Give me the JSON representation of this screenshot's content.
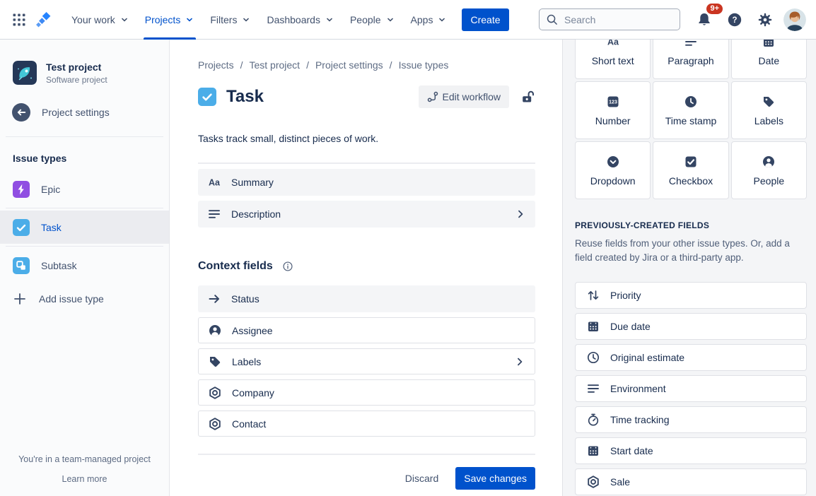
{
  "colors": {
    "accent": "#0052CC",
    "badge": "#CA3521",
    "task_blue": "#4BADE8",
    "epic_purple": "#904EE2",
    "subtask_blue": "#4BADE8",
    "panel_bg": "#F4F5F7",
    "selected_bg": "#EBECF0"
  },
  "topnav": {
    "items": [
      {
        "label": "Your work"
      },
      {
        "label": "Projects",
        "active": true
      },
      {
        "label": "Filters"
      },
      {
        "label": "Dashboards"
      },
      {
        "label": "People"
      },
      {
        "label": "Apps"
      }
    ],
    "create_label": "Create",
    "search_placeholder": "Search",
    "notification_count": "9+"
  },
  "sidebar": {
    "project_name": "Test project",
    "project_type": "Software project",
    "back_label": "Project settings",
    "section_title": "Issue types",
    "issue_types": [
      {
        "label": "Epic",
        "icon": "epic"
      },
      {
        "label": "Task",
        "icon": "task",
        "selected": true
      },
      {
        "label": "Subtask",
        "icon": "subtask"
      }
    ],
    "add_label": "Add issue type",
    "footer_note": "You're in a team-managed project",
    "footer_link": "Learn more"
  },
  "main": {
    "breadcrumbs": [
      "Projects",
      "Test project",
      "Project settings",
      "Issue types"
    ],
    "title": "Task",
    "edit_workflow_label": "Edit workflow",
    "description": "Tasks track small, distinct pieces of work.",
    "base_fields": [
      {
        "label": "Summary",
        "icon": "short-text"
      },
      {
        "label": "Description",
        "icon": "paragraph",
        "chevron": true
      }
    ],
    "context_heading": "Context fields",
    "context_fields": [
      {
        "label": "Status",
        "icon": "arrow-right",
        "highlight": true
      },
      {
        "label": "Assignee",
        "icon": "people"
      },
      {
        "label": "Labels",
        "icon": "labels",
        "chevron": true
      },
      {
        "label": "Company",
        "icon": "custom-field"
      },
      {
        "label": "Contact",
        "icon": "custom-field"
      }
    ],
    "discard_label": "Discard",
    "save_label": "Save changes"
  },
  "panel": {
    "tiles": [
      {
        "label": "Short text",
        "icon": "short-text"
      },
      {
        "label": "Paragraph",
        "icon": "paragraph"
      },
      {
        "label": "Date",
        "icon": "date"
      },
      {
        "label": "Number",
        "icon": "number"
      },
      {
        "label": "Time stamp",
        "icon": "time-stamp"
      },
      {
        "label": "Labels",
        "icon": "labels"
      },
      {
        "label": "Dropdown",
        "icon": "dropdown"
      },
      {
        "label": "Checkbox",
        "icon": "checkbox"
      },
      {
        "label": "People",
        "icon": "people"
      }
    ],
    "previous_heading": "PREVIOUSLY-CREATED FIELDS",
    "previous_description": "Reuse fields from your other issue types. Or, add a field created by Jira or a third-party app.",
    "previous_fields": [
      {
        "label": "Priority",
        "icon": "priority"
      },
      {
        "label": "Due date",
        "icon": "calendar"
      },
      {
        "label": "Original estimate",
        "icon": "clock"
      },
      {
        "label": "Environment",
        "icon": "paragraph"
      },
      {
        "label": "Time tracking",
        "icon": "stopwatch"
      },
      {
        "label": "Start date",
        "icon": "calendar"
      },
      {
        "label": "Sale",
        "icon": "custom-field"
      }
    ]
  }
}
